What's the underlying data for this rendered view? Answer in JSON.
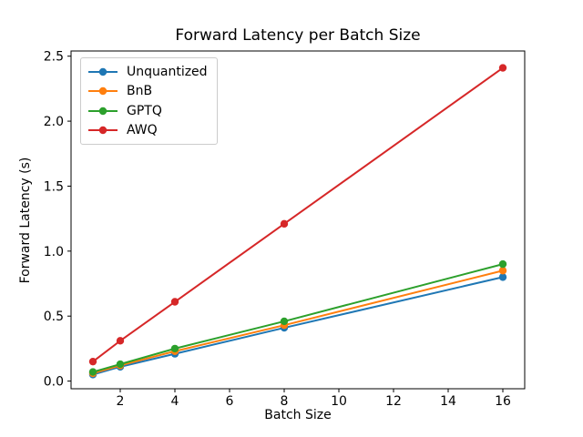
{
  "window": {
    "title": "Forward Latency per Batch Size"
  },
  "chart_data": {
    "type": "line",
    "title": "Forward Latency per Batch Size",
    "xlabel": "Batch Size",
    "ylabel": "Forward Latency (s)",
    "x": [
      1,
      2,
      4,
      8,
      16
    ],
    "series": [
      {
        "name": "Unquantized",
        "color": "#1f77b4",
        "values": [
          0.05,
          0.11,
          0.21,
          0.41,
          0.8
        ]
      },
      {
        "name": "BnB",
        "color": "#ff7f0e",
        "values": [
          0.06,
          0.12,
          0.23,
          0.43,
          0.85
        ]
      },
      {
        "name": "GPTQ",
        "color": "#2ca02c",
        "values": [
          0.07,
          0.13,
          0.25,
          0.46,
          0.9
        ]
      },
      {
        "name": "AWQ",
        "color": "#d62728",
        "values": [
          0.15,
          0.31,
          0.61,
          1.21,
          2.41
        ]
      }
    ],
    "marker": "o",
    "grid": false,
    "legend_position": "upper left",
    "xlim": [
      0.2,
      16.8
    ],
    "ylim": [
      -0.059,
      2.54
    ],
    "xticks": [
      2,
      4,
      6,
      8,
      10,
      12,
      14,
      16
    ],
    "xtick_labels": [
      "2",
      "4",
      "6",
      "8",
      "10",
      "12",
      "14",
      "16"
    ],
    "yticks": [
      0.0,
      0.5,
      1.0,
      1.5,
      2.0,
      2.5
    ],
    "ytick_labels": [
      "0.0",
      "0.5",
      "1.0",
      "1.5",
      "2.0",
      "2.5"
    ],
    "axis_color": "#000000",
    "background_color": "#ffffff"
  }
}
